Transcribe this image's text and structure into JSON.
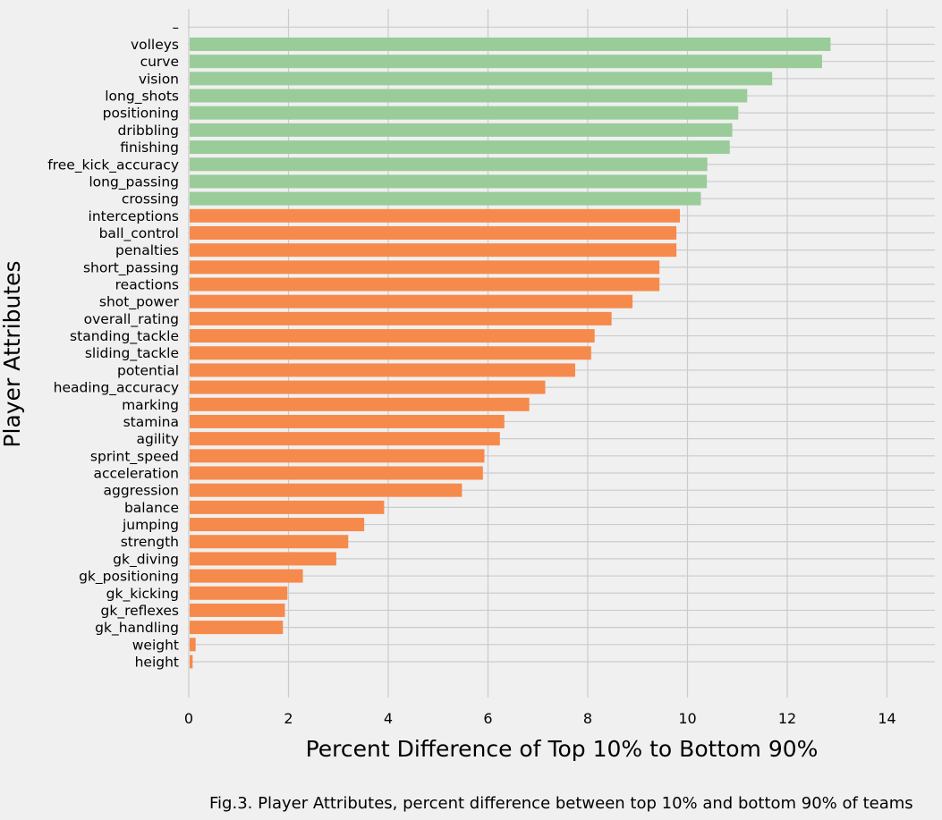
{
  "chart_data": {
    "type": "bar",
    "orientation": "horizontal",
    "xlabel": "Percent Difference of Top 10% to Bottom 90%",
    "ylabel": "Player Attributes",
    "xlim": [
      0,
      15
    ],
    "xticks": [
      0,
      2,
      4,
      6,
      8,
      10,
      12,
      14
    ],
    "grid": true,
    "top_tick_label": "–",
    "categories": [
      "volleys",
      "curve",
      "vision",
      "long_shots",
      "positioning",
      "dribbling",
      "finishing",
      "free_kick_accuracy",
      "long_passing",
      "crossing",
      "interceptions",
      "ball_control",
      "penalties",
      "short_passing",
      "reactions",
      "shot_power",
      "overall_rating",
      "standing_tackle",
      "sliding_tackle",
      "potential",
      "heading_accuracy",
      "marking",
      "stamina",
      "agility",
      "sprint_speed",
      "acceleration",
      "aggression",
      "balance",
      "jumping",
      "strength",
      "gk_diving",
      "gk_positioning",
      "gk_kicking",
      "gk_reflexes",
      "gk_handling",
      "weight",
      "height"
    ],
    "values": [
      12.85,
      12.68,
      11.68,
      11.18,
      11.0,
      10.88,
      10.83,
      10.38,
      10.37,
      10.25,
      9.83,
      9.76,
      9.76,
      9.42,
      9.42,
      8.88,
      8.46,
      8.12,
      8.05,
      7.73,
      7.13,
      6.81,
      6.31,
      6.22,
      5.91,
      5.88,
      5.46,
      3.9,
      3.5,
      3.18,
      2.94,
      2.27,
      1.96,
      1.91,
      1.87,
      0.12,
      0.06
    ],
    "highlight_count": 10,
    "colors": {
      "highlight": "#99cc99",
      "default": "#f68a4c",
      "grid": "#cbcbcb",
      "background": "#f0f0f0"
    }
  },
  "caption": "Fig.3. Player Attributes, percent difference between top 10% and bottom 90% of teams"
}
